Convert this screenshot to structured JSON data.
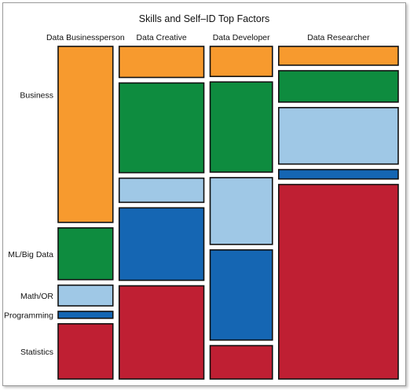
{
  "chart_data": {
    "type": "mosaic",
    "title": "Skills and Self–ID Top Factors",
    "columns": [
      "Data Businessperson",
      "Data Creative",
      "Data Developer",
      "Data Researcher"
    ],
    "column_widths": [
      0.22,
      0.34,
      0.25,
      0.48
    ],
    "rows": [
      {
        "name": "Business",
        "color": "#f79a2e"
      },
      {
        "name": "ML/Big Data",
        "color": "#0e8c3f"
      },
      {
        "name": "Math/OR",
        "color": "#9fc8e6"
      },
      {
        "name": "Programming",
        "color": "#1566b3"
      },
      {
        "name": "Statistics",
        "color": "#bf1f33"
      }
    ],
    "proportions": [
      [
        0.51,
        0.15,
        0.06,
        0.02,
        0.16
      ],
      [
        0.09,
        0.26,
        0.07,
        0.21,
        0.27
      ],
      [
        0.09,
        0.27,
        0.2,
        0.27,
        0.1
      ],
      [
        0.06,
        0.1,
        0.18,
        0.03,
        0.62
      ]
    ]
  }
}
